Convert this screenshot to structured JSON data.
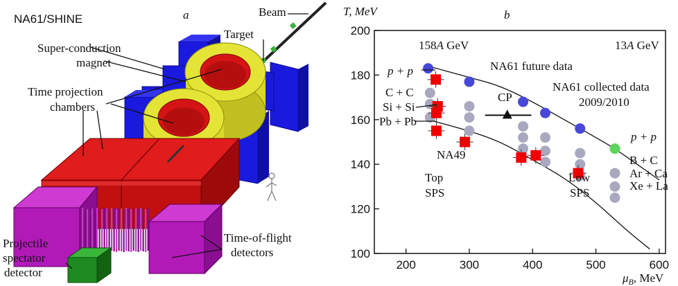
{
  "panel_a": {
    "title": "NA61/SHINE",
    "panel_letter": "a",
    "labels": {
      "beam": "Beam",
      "target": "Target",
      "magnet_line1": "Super-conduction",
      "magnet_line2": "magnet",
      "tpc_line1": "Time projection",
      "tpc_line2": "chambers",
      "tof_line1": "Time-of-flight",
      "tof_line2": "detectors",
      "psd_line1": "Projectile",
      "psd_line2": "spectator",
      "psd_line3": "detector"
    },
    "colors": {
      "magnet_blue": "#1a1adf",
      "magnet_yellow": "#d8d82a",
      "tpc_red": "#d41414",
      "tof_purple": "#b21ab8",
      "psd_green": "#1f8a1f",
      "beam_green": "#3cb13c"
    }
  },
  "panel_b": {
    "panel_letter": "b",
    "annotations": {
      "energy_high": "158",
      "energy_high_suffix": "A",
      "energy_high_unit": " GeV",
      "energy_low": "13",
      "energy_low_suffix": "A",
      "energy_low_unit": " GeV",
      "future": "NA61 future data",
      "collected_line1": "NA61 collected data",
      "collected_line2": "2009/2010",
      "cp": "CP",
      "na49": "NA49",
      "top_line1": "Top",
      "top_line2": "SPS",
      "low_line1": "Low",
      "low_line2": "SPS",
      "pp_left": "p + p",
      "cc": "C + C",
      "sisi": "Si + Si",
      "pbpb": "Pb + Pb",
      "pp_right": "p + p",
      "bc": "B + C",
      "arca": "Ar + Ca",
      "xela": "Xe + La"
    },
    "colors": {
      "future_blue": "#4747d8",
      "collected_gray": "#a8a8bf",
      "na49_red": "#ee0000",
      "pp_green": "#5bd55b",
      "cp_black": "#111111"
    },
    "chart_data": {
      "type": "scatter",
      "xlabel": "μ",
      "xlabel_sub": "B",
      "xlabel_unit": ", MeV",
      "ylabel": "T, MeV",
      "xlim": [
        150,
        610
      ],
      "ylim": [
        100,
        200
      ],
      "xticks": [
        200,
        300,
        400,
        500,
        600
      ],
      "yticks": [
        100,
        120,
        140,
        160,
        180,
        200
      ],
      "series": [
        {
          "name": "NA61 future data",
          "marker": "circle",
          "points": [
            [
              235,
              183
            ],
            [
              300,
              177
            ],
            [
              385,
              168
            ],
            [
              420,
              163
            ],
            [
              475,
              156
            ]
          ]
        },
        {
          "name": "NA61 collected data",
          "marker": "circle",
          "points": [
            [
              238,
              172
            ],
            [
              238,
              167
            ],
            [
              238,
              161
            ],
            [
              300,
              166
            ],
            [
              300,
              161
            ],
            [
              300,
              155
            ],
            [
              385,
              157
            ],
            [
              385,
              152
            ],
            [
              385,
              147
            ],
            [
              420,
              152
            ],
            [
              420,
              146
            ],
            [
              420,
              141
            ],
            [
              475,
              145
            ],
            [
              475,
              140
            ],
            [
              475,
              135
            ],
            [
              530,
              136
            ],
            [
              530,
              130
            ],
            [
              530,
              125
            ]
          ]
        },
        {
          "name": "p + p (green)",
          "marker": "circle",
          "points": [
            [
              530,
              147
            ]
          ]
        },
        {
          "name": "NA49",
          "marker": "square",
          "points": [
            [
              247,
              178
            ],
            [
              250,
              166
            ],
            [
              248,
              163
            ],
            [
              248,
              155
            ],
            [
              293,
              150
            ],
            [
              382,
              143
            ],
            [
              405,
              144
            ],
            [
              472,
              136
            ]
          ]
        },
        {
          "name": "CP",
          "marker": "triangle",
          "points": [
            [
              360,
              162
            ]
          ]
        }
      ],
      "curves": [
        {
          "points": [
            [
              235,
              184
            ],
            [
              300,
              179
            ],
            [
              350,
              175
            ],
            [
              400,
              168
            ],
            [
              450,
              160
            ],
            [
              500,
              152
            ],
            [
              530,
              147
            ],
            [
              560,
              141
            ],
            [
              600,
              133
            ]
          ]
        },
        {
          "points": [
            [
              235,
              160
            ],
            [
              300,
              155
            ],
            [
              350,
              150
            ],
            [
              400,
              142
            ],
            [
              450,
              134
            ],
            [
              500,
              123
            ],
            [
              550,
              110
            ],
            [
              585,
              102
            ]
          ]
        }
      ]
    }
  }
}
